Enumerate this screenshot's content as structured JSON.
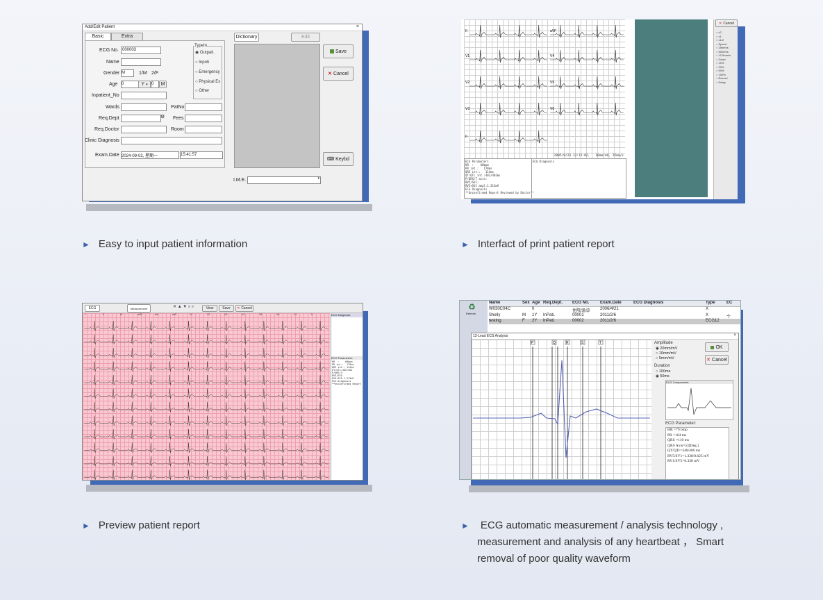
{
  "captions": {
    "c1": "Easy to input patient information",
    "c2": "Interfact of print patient report",
    "c3": "Preview patient report",
    "c4_line1": "ECG automatic measurement / analysis technology ,",
    "c4_line2": "measurement and analysis of any heartbeat ，  Smart",
    "c4_line3": "removal of poor quality waveform"
  },
  "colors": {
    "accent_shadow": "#4169b5",
    "ecg_pink": "#f8c9d2",
    "teal_panel": "#4b7e7c"
  },
  "dialog1": {
    "title": "Add/Edit Patient",
    "tabs": [
      "Basic",
      "Extra"
    ],
    "ecg_no_label": "ECG No.",
    "ecg_no_value": "000003",
    "name_label": "Name",
    "gender_label": "Gender",
    "gender_value": "M",
    "gender_hint1": "1/M",
    "gender_hint2": "2/F",
    "age_label": "Age",
    "age_value": "0",
    "age_unit": "Y",
    "age_value2": "0",
    "age_unit2": "M",
    "inpatient_label": "Inpatient_No",
    "wards_label": "Wards",
    "patno_label": "PatNo",
    "reqdept_label": "Req.Dept",
    "fees_label": "Fees",
    "reqdoctor_label": "Req.Doctor",
    "room_label": "Room",
    "clinic_label": "Clinic Diagnosis",
    "examdate_label": "Exam.Date",
    "examdate_value": "2024-09-02, 星期一",
    "examtime_value": "15:41:57",
    "typein_title": "TypeIn",
    "typein_options": [
      "Outpati.",
      "Inpoti",
      "Emergency",
      "Physical Ex",
      "Other"
    ],
    "dictionary_label": "Dictionary",
    "edit_label": "Edit",
    "save_label": "Save",
    "cancel_label": "Cancel",
    "keybd_label": "Keybd",
    "ime_label": "I.M.E."
  },
  "print_report": {
    "lead_labels_left": [
      "II",
      "V1",
      "V2",
      "V3",
      "II"
    ],
    "lead_labels_right": [
      "aVF",
      "V4",
      "V5",
      "V6"
    ],
    "footer_ts": "2005/9/23 13:12:02,   10mm/mV, 25mm/s",
    "params_text": "ECG Parameters\nHR  :    60bpm\nPR int.:   178ms\nQRS int.:   114ms\nQT/QTc int.:402/402ms\nP/QRS/T axis:\nRV5/SV1:\nRV5+SV1 ampl:1.213mV\nECG Diagnosis\n**Unconfirmed Report Reviewed by Doctor**",
    "diag_title": "ECG Diagnosis",
    "cancel_label": "Cancel",
    "side_options": [
      "x2",
      "x1",
      "x1/2",
      "Speed",
      "25mm/s",
      "50mm/s",
      "12.5mm/s",
      "Zoom",
      "10%",
      "20%",
      "50%",
      "100%",
      "Record",
      "Delay"
    ]
  },
  "preview": {
    "ecg_button": "ECG",
    "measure_label": "Measurement",
    "view_label": "View",
    "save_label": "Save",
    "cancel_label": "Cancel",
    "diag_title": "ECG Diagnosis",
    "params_tab": "ECG Parameters",
    "params_text": "HR  :    60bpm\nPR int.:  178ms\nQRS int.: 114ms\nQT/QTc:402/402\nP/QRS/T:\nRV5/SV1:\nRV5+SV1:1.213mV\nECG Diagnosis\n**Unconfirmed Report",
    "lead_headers": [
      "I",
      "II",
      "III",
      "aVR",
      "aVL",
      "aVF",
      "V1",
      "V2",
      "V3",
      "V4",
      "V5",
      "V6",
      "V1",
      "II"
    ]
  },
  "analysis": {
    "table_headers": [
      "Name",
      "Sex",
      "Age",
      "Req.Dept.",
      "ECG No.",
      "Exam.Date",
      "ECG Diagnosis",
      "Type",
      "EC"
    ],
    "rows": [
      [
        "W030C04C",
        "",
        "0",
        "",
        "住院/急诊",
        "2006/4/21",
        "",
        "X",
        ""
      ],
      [
        "Shelly",
        "M",
        "1Y",
        "InPati.",
        "00001",
        "2011/2/6",
        "",
        "X",
        "个"
      ],
      [
        "testing",
        "F",
        "2Y",
        "InPati.",
        "00002",
        "2011/2/6",
        "",
        "ECG12",
        ""
      ]
    ],
    "sidebar_label": "Refresh",
    "dialog_title": "12-Lead ECG Analysis",
    "amplitude_title": "Amplitude",
    "amplitude_options": [
      "20mm/mV",
      "10mm/mV",
      "5mm/mV"
    ],
    "duration_title": "Duration",
    "duration_options": [
      "100ms",
      "50ms"
    ],
    "ok_label": "OK",
    "cancel_label": "Cancel",
    "components_title": "ECG Components",
    "param_title": "ECG Parameter:",
    "params": [
      "HR =79 bmp",
      "PR =164 ms",
      "QRS =110 ms",
      "QRS Axis=53[Deg.]",
      "QT/QTc=348/400 ms",
      "RV5/SV1=1.338/0.625 mV",
      "RV1/SV5=0.338 mV"
    ],
    "markers": [
      "P",
      "Q",
      "R",
      "S",
      "T"
    ]
  }
}
